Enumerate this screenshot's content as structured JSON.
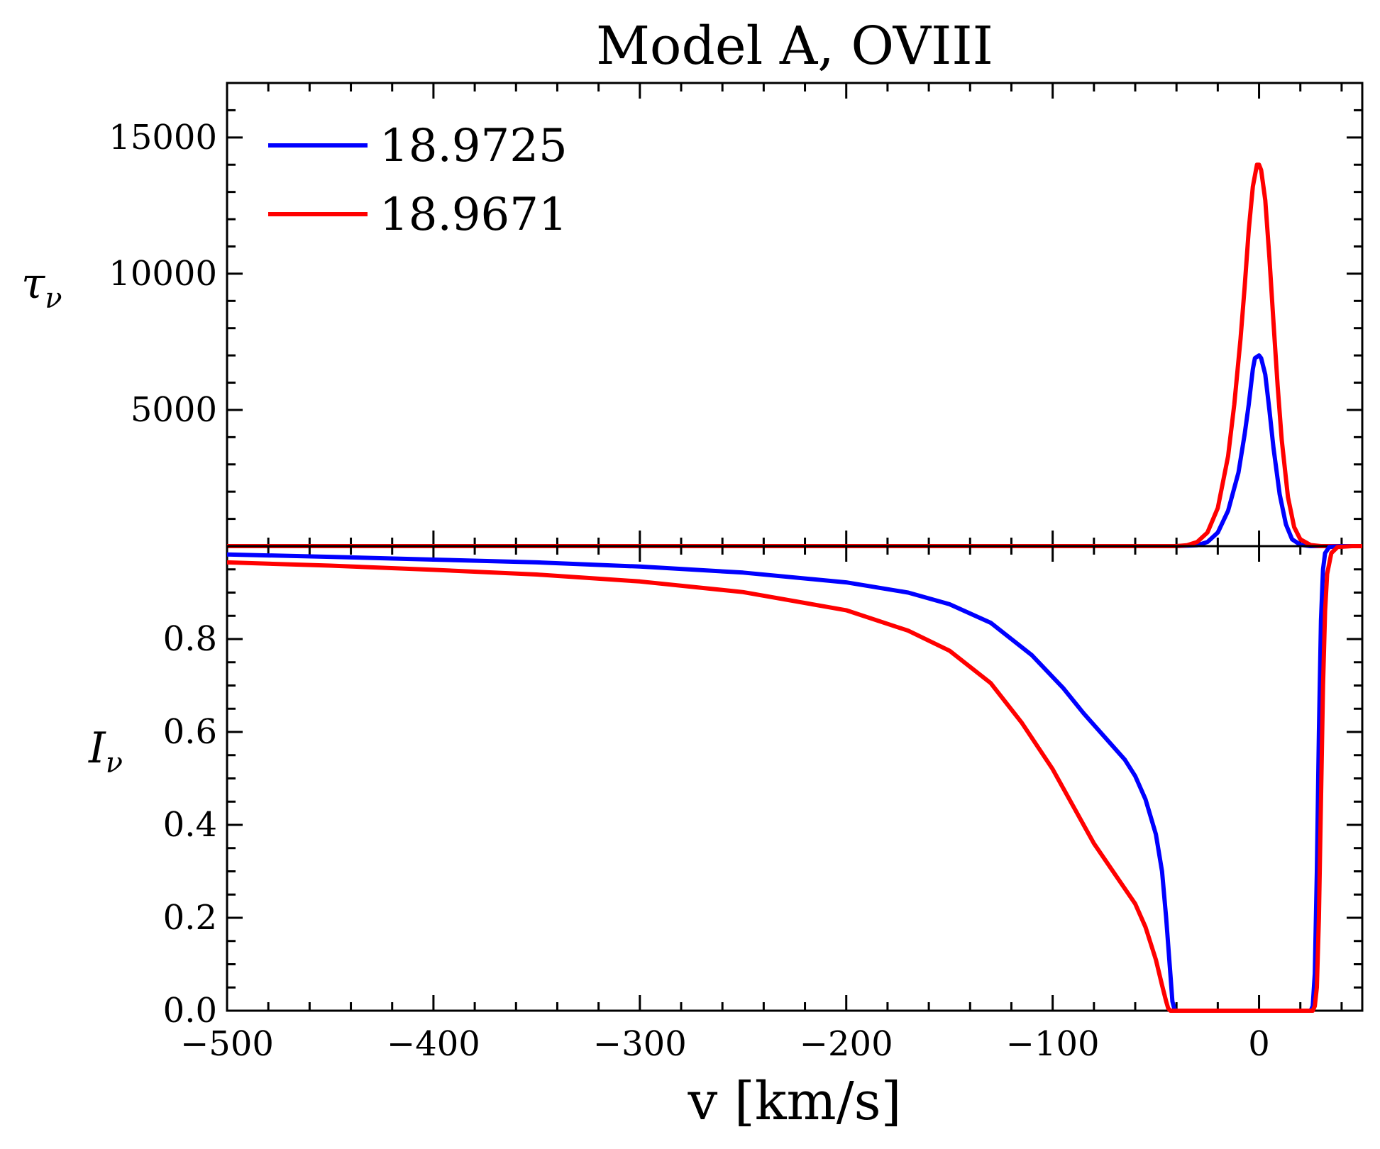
{
  "chart_data": {
    "type": "line",
    "title": "Model A, OVIII",
    "xlabel": "v [km/s]",
    "xlim": [
      -500,
      50
    ],
    "x_ticks": [
      -500,
      -400,
      -300,
      -200,
      -100,
      0
    ],
    "x_tick_labels": [
      "−500",
      "−400",
      "−300",
      "−200",
      "−100",
      "0"
    ],
    "legend": {
      "position": "upper-left",
      "entries": [
        {
          "label": "18.9725",
          "color": "#0000ff"
        },
        {
          "label": "18.9671",
          "color": "#ff0000"
        }
      ]
    },
    "panels": [
      {
        "name": "tau",
        "ylabel_main": "τ",
        "ylabel_sub": "ν",
        "ylim": [
          0,
          17000
        ],
        "y_ticks": [
          5000,
          10000,
          15000
        ],
        "y_tick_labels": [
          "5000",
          "10000",
          "15000"
        ],
        "series": [
          {
            "label": "18.9725",
            "color": "#0000ff",
            "points": [
              [
                -500,
                0
              ],
              [
                -100,
                0
              ],
              [
                -40,
                0
              ],
              [
                -30,
                30
              ],
              [
                -25,
                150
              ],
              [
                -20,
                500
              ],
              [
                -15,
                1300
              ],
              [
                -10,
                2700
              ],
              [
                -7,
                4100
              ],
              [
                -5,
                5200
              ],
              [
                -3,
                6500
              ],
              [
                -2,
                6900
              ],
              [
                0,
                7000
              ],
              [
                1,
                6900
              ],
              [
                3,
                6300
              ],
              [
                5,
                5000
              ],
              [
                7,
                3600
              ],
              [
                10,
                1900
              ],
              [
                13,
                800
              ],
              [
                16,
                250
              ],
              [
                20,
                50
              ],
              [
                25,
                0
              ],
              [
                50,
                0
              ]
            ]
          },
          {
            "label": "18.9671",
            "color": "#ff0000",
            "points": [
              [
                -500,
                0
              ],
              [
                -100,
                0
              ],
              [
                -40,
                0
              ],
              [
                -35,
                30
              ],
              [
                -30,
                150
              ],
              [
                -25,
                500
              ],
              [
                -20,
                1400
              ],
              [
                -15,
                3300
              ],
              [
                -12,
                5200
              ],
              [
                -9,
                7600
              ],
              [
                -7,
                9500
              ],
              [
                -5,
                11600
              ],
              [
                -3,
                13200
              ],
              [
                -1,
                14000
              ],
              [
                0,
                14000
              ],
              [
                1,
                13800
              ],
              [
                3,
                12700
              ],
              [
                5,
                10600
              ],
              [
                7,
                8200
              ],
              [
                9,
                5900
              ],
              [
                11,
                3900
              ],
              [
                14,
                1800
              ],
              [
                17,
                700
              ],
              [
                20,
                250
              ],
              [
                25,
                40
              ],
              [
                30,
                0
              ],
              [
                50,
                0
              ]
            ]
          }
        ]
      },
      {
        "name": "intensity",
        "ylabel_main": "I",
        "ylabel_sub": "ν",
        "ylim": [
          0,
          1.0
        ],
        "y_ticks": [
          0.0,
          0.2,
          0.4,
          0.6,
          0.8
        ],
        "y_tick_labels": [
          "0.0",
          "0.2",
          "0.4",
          "0.6",
          "0.8"
        ],
        "series": [
          {
            "label": "18.9725",
            "color": "#0000ff",
            "points": [
              [
                -500,
                0.982
              ],
              [
                -450,
                0.977
              ],
              [
                -400,
                0.971
              ],
              [
                -350,
                0.965
              ],
              [
                -300,
                0.956
              ],
              [
                -250,
                0.943
              ],
              [
                -200,
                0.922
              ],
              [
                -170,
                0.9
              ],
              [
                -150,
                0.875
              ],
              [
                -130,
                0.835
              ],
              [
                -110,
                0.765
              ],
              [
                -95,
                0.695
              ],
              [
                -85,
                0.64
              ],
              [
                -75,
                0.59
              ],
              [
                -65,
                0.54
              ],
              [
                -60,
                0.505
              ],
              [
                -55,
                0.455
              ],
              [
                -50,
                0.38
              ],
              [
                -47,
                0.3
              ],
              [
                -45,
                0.2
              ],
              [
                -43,
                0.08
              ],
              [
                -42,
                0.02
              ],
              [
                -41,
                0.003
              ],
              [
                -40,
                0.0
              ],
              [
                25,
                0.0
              ],
              [
                26,
                0.01
              ],
              [
                27,
                0.08
              ],
              [
                28,
                0.3
              ],
              [
                29,
                0.6
              ],
              [
                30,
                0.84
              ],
              [
                31,
                0.95
              ],
              [
                32,
                0.985
              ],
              [
                34,
                0.998
              ],
              [
                40,
                1.0
              ],
              [
                50,
                1.0
              ]
            ]
          },
          {
            "label": "18.9671",
            "color": "#ff0000",
            "points": [
              [
                -500,
                0.965
              ],
              [
                -450,
                0.958
              ],
              [
                -400,
                0.949
              ],
              [
                -350,
                0.939
              ],
              [
                -300,
                0.924
              ],
              [
                -250,
                0.901
              ],
              [
                -200,
                0.862
              ],
              [
                -170,
                0.818
              ],
              [
                -150,
                0.775
              ],
              [
                -130,
                0.705
              ],
              [
                -115,
                0.62
              ],
              [
                -100,
                0.52
              ],
              [
                -90,
                0.44
              ],
              [
                -80,
                0.36
              ],
              [
                -70,
                0.295
              ],
              [
                -60,
                0.23
              ],
              [
                -55,
                0.18
              ],
              [
                -50,
                0.11
              ],
              [
                -47,
                0.055
              ],
              [
                -45,
                0.02
              ],
              [
                -44,
                0.005
              ],
              [
                -43,
                0.0
              ],
              [
                26,
                0.0
              ],
              [
                27,
                0.01
              ],
              [
                28,
                0.05
              ],
              [
                29,
                0.2
              ],
              [
                30,
                0.45
              ],
              [
                31,
                0.7
              ],
              [
                32,
                0.86
              ],
              [
                33,
                0.94
              ],
              [
                35,
                0.985
              ],
              [
                38,
                0.998
              ],
              [
                45,
                1.0
              ],
              [
                50,
                1.0
              ]
            ]
          }
        ]
      }
    ]
  }
}
